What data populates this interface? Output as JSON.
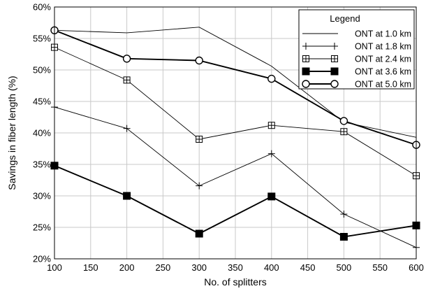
{
  "chart_data": {
    "type": "line",
    "title": "",
    "xlabel": "No. of splitters",
    "ylabel": "Savings in fiber length (%)",
    "x": [
      100,
      200,
      300,
      400,
      500,
      600
    ],
    "xlim": [
      100,
      600
    ],
    "ylim": [
      20,
      60
    ],
    "xticks": [
      100,
      150,
      200,
      250,
      300,
      350,
      400,
      450,
      500,
      550,
      600
    ],
    "yticks": [
      20,
      25,
      30,
      35,
      40,
      45,
      50,
      55,
      60
    ],
    "xtick_labels": [
      "100",
      "150",
      "200",
      "250",
      "300",
      "350",
      "400",
      "450",
      "500",
      "550",
      "600"
    ],
    "ytick_labels": [
      "20%",
      "25%",
      "30%",
      "35%",
      "40%",
      "45%",
      "50%",
      "55%",
      "60%"
    ],
    "grid": true,
    "legend": {
      "title": "Legend",
      "placement": "top-right"
    },
    "series": [
      {
        "name": "ONT at 1.0 km",
        "marker": "none",
        "line_weight": "thin",
        "values": [
          56.3,
          55.9,
          56.8,
          50.6,
          41.7,
          39.3
        ]
      },
      {
        "name": "ONT at 1.8 km",
        "marker": "plus",
        "line_weight": "thin",
        "values": [
          44.1,
          40.7,
          31.6,
          36.7,
          27.1,
          21.8
        ]
      },
      {
        "name": "ONT at 2.4 km",
        "marker": "boxed-plus",
        "line_weight": "thin",
        "values": [
          53.6,
          48.4,
          39.0,
          41.2,
          40.2,
          33.2
        ]
      },
      {
        "name": "ONT at 3.6 km",
        "marker": "filled-square",
        "line_weight": "thick",
        "values": [
          34.8,
          30.0,
          24.0,
          29.9,
          23.5,
          25.3
        ]
      },
      {
        "name": "ONT at 5.0 km",
        "marker": "open-circle",
        "line_weight": "thick",
        "values": [
          56.3,
          51.8,
          51.5,
          48.6,
          41.9,
          38.1
        ]
      }
    ]
  }
}
